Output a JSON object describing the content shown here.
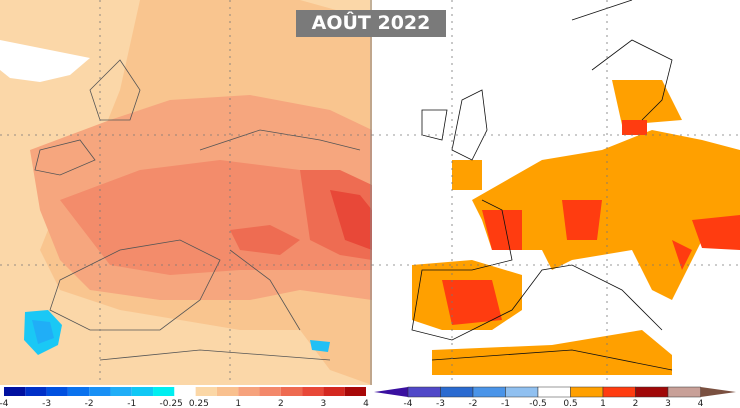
{
  "title": "AOÛT 2022",
  "left_map": {
    "colorbar": {
      "labels": [
        "-4",
        "-3",
        "-2",
        "-1",
        "-0.25",
        "0.25",
        "1",
        "2",
        "3",
        "4"
      ],
      "colors": [
        "#0010a0",
        "#0030c8",
        "#0050e0",
        "#0a72ee",
        "#1890f5",
        "#20aef7",
        "#10c8f5",
        "#00eef0",
        "#ffffff",
        "#fbd7a6",
        "#f9c08e",
        "#f6a27c",
        "#f3886a",
        "#ee6a50",
        "#e84838",
        "#d42820",
        "#a80808"
      ]
    }
  },
  "right_map": {
    "colorbar": {
      "labels": [
        "-4",
        "-3",
        "-2",
        "-1",
        "-0.5",
        "0.5",
        "1",
        "2",
        "3",
        "4"
      ],
      "colors": [
        "#3a10a0",
        "#5048c8",
        "#2a6ad0",
        "#4a94e8",
        "#90c0f0",
        "#ffffff",
        "#ffa000",
        "#ff3c10",
        "#a00808",
        "#c8a098",
        "#7a5040"
      ]
    }
  }
}
